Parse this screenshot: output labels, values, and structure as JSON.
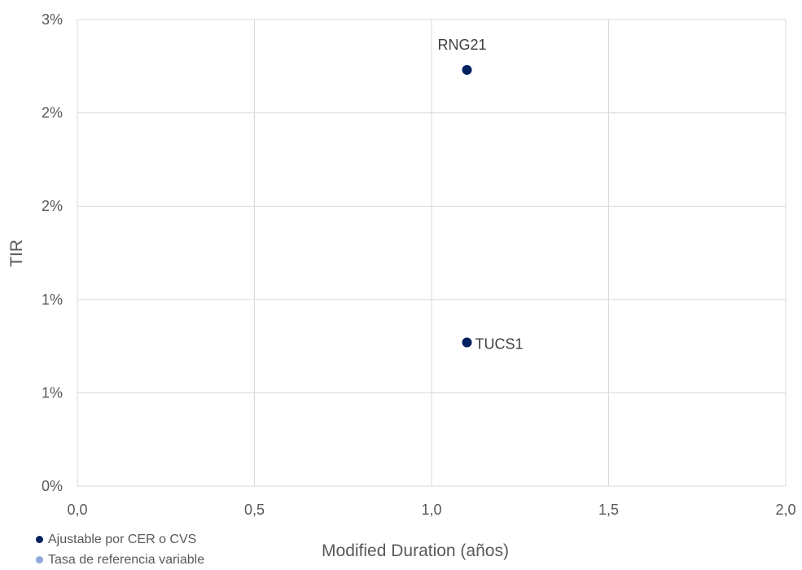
{
  "chart_data": {
    "type": "scatter",
    "xlabel": "Modified Duration (años)",
    "ylabel": "TIR",
    "xlim": [
      0,
      2
    ],
    "ylim": [
      0,
      0.025
    ],
    "x_ticks": [
      0,
      0.5,
      1.0,
      1.5,
      2.0
    ],
    "x_tick_labels": [
      "0,0",
      "0,5",
      "1,0",
      "1,5",
      "2,0"
    ],
    "y_ticks": [
      0,
      0.005,
      0.01,
      0.015,
      0.02,
      0.025
    ],
    "y_tick_labels": [
      "0%",
      "1%",
      "1%",
      "2%",
      "2%",
      "3%"
    ],
    "grid": true,
    "legend_position": "bottom-left",
    "series": [
      {
        "name": "Ajustable por CER o CVS",
        "color": "#002060",
        "points": [
          {
            "label": "RNG21",
            "x": 1.1,
            "y": 0.0223
          },
          {
            "label": "TUCS1",
            "x": 1.1,
            "y": 0.0077
          }
        ]
      },
      {
        "name": "Tasa de referencia variable",
        "color": "#8EA9DB",
        "points": []
      }
    ]
  }
}
